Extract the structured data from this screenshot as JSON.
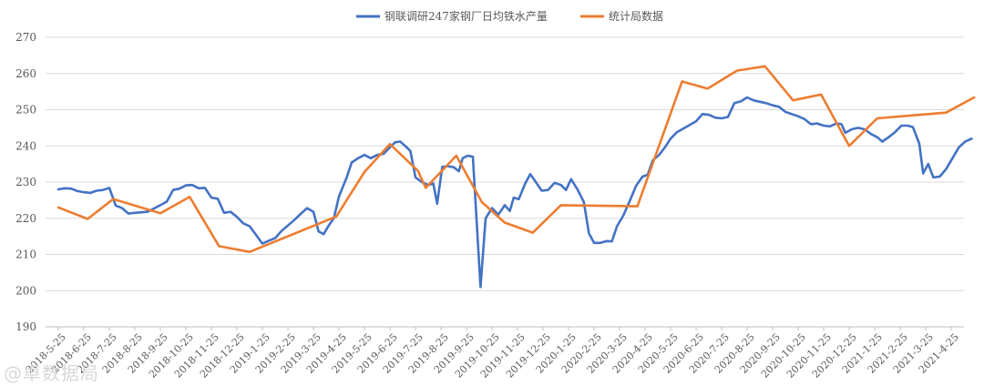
{
  "chart_data": {
    "type": "line",
    "ylim": [
      190,
      270
    ],
    "yticks": [
      190,
      200,
      210,
      220,
      230,
      240,
      250,
      260,
      270
    ],
    "grid": true,
    "legend_position": "top-center",
    "x_categories": [
      "2018-5-25",
      "2018-6-25",
      "2018-7-25",
      "2018-8-25",
      "2018-9-25",
      "2018-10-25",
      "2018-11-25",
      "2018-12-25",
      "2019-1-25",
      "2019-2-25",
      "2019-3-25",
      "2019-4-25",
      "2019-5-25",
      "2019-6-25",
      "2019-7-25",
      "2019-8-25",
      "2019-9-25",
      "2019-10-25",
      "2019-11-25",
      "2019-12-25",
      "2020-1-25",
      "2020-2-25",
      "2020-3-25",
      "2020-4-25",
      "2020-5-25",
      "2020-6-25",
      "2020-7-25",
      "2020-8-25",
      "2020-9-25",
      "2020-10-25",
      "2020-11-25",
      "2020-12-25",
      "2021-1-25",
      "2021-2-25",
      "2021-3-25",
      "2021-4-25"
    ],
    "series": [
      {
        "name": "钢联调研247家钢厂日均铁水产量",
        "color": "#4472C4",
        "points": [
          [
            0,
            228.0
          ],
          [
            0.25,
            228.3
          ],
          [
            0.5,
            228.2
          ],
          [
            0.75,
            227.5
          ],
          [
            1,
            227.2
          ],
          [
            1.25,
            227.0
          ],
          [
            1.5,
            227.6
          ],
          [
            1.75,
            227.8
          ],
          [
            2,
            228.4
          ],
          [
            2.25,
            223.5
          ],
          [
            2.5,
            222.8
          ],
          [
            2.75,
            221.3
          ],
          [
            3,
            221.5
          ],
          [
            3.5,
            221.8
          ],
          [
            4,
            223.6
          ],
          [
            4.25,
            224.6
          ],
          [
            4.5,
            227.8
          ],
          [
            4.75,
            228.2
          ],
          [
            5,
            229.1
          ],
          [
            5.25,
            229.2
          ],
          [
            5.5,
            228.3
          ],
          [
            5.75,
            228.4
          ],
          [
            6,
            225.7
          ],
          [
            6.25,
            225.4
          ],
          [
            6.5,
            221.5
          ],
          [
            6.75,
            221.8
          ],
          [
            7,
            220.4
          ],
          [
            7.25,
            218.6
          ],
          [
            7.5,
            217.8
          ],
          [
            7.75,
            215.4
          ],
          [
            8,
            213.0
          ],
          [
            8.25,
            213.8
          ],
          [
            8.5,
            214.5
          ],
          [
            8.75,
            216.5
          ],
          [
            9,
            218.0
          ],
          [
            9.25,
            219.5
          ],
          [
            9.5,
            221.2
          ],
          [
            9.75,
            222.8
          ],
          [
            10,
            221.8
          ],
          [
            10.2,
            216.4
          ],
          [
            10.4,
            215.6
          ],
          [
            10.6,
            218.0
          ],
          [
            10.8,
            220.0
          ],
          [
            11,
            226.0
          ],
          [
            11.3,
            231.2
          ],
          [
            11.5,
            235.4
          ],
          [
            11.75,
            236.6
          ],
          [
            12,
            237.5
          ],
          [
            12.25,
            236.6
          ],
          [
            12.5,
            237.5
          ],
          [
            12.75,
            237.8
          ],
          [
            13,
            239.6
          ],
          [
            13.2,
            241.0
          ],
          [
            13.4,
            241.2
          ],
          [
            13.6,
            240.0
          ],
          [
            13.8,
            238.6
          ],
          [
            14,
            231.3
          ],
          [
            14.25,
            230.0
          ],
          [
            14.5,
            229.2
          ],
          [
            14.7,
            229.6
          ],
          [
            14.85,
            224.0
          ],
          [
            15.05,
            234.2
          ],
          [
            15.25,
            234.4
          ],
          [
            15.5,
            234.1
          ],
          [
            15.7,
            233.0
          ],
          [
            15.85,
            236.6
          ],
          [
            16.05,
            237.3
          ],
          [
            16.25,
            237.0
          ],
          [
            16.55,
            201.0
          ],
          [
            16.75,
            220.0
          ],
          [
            17,
            222.8
          ],
          [
            17.25,
            221.0
          ],
          [
            17.5,
            223.6
          ],
          [
            17.7,
            222.0
          ],
          [
            17.85,
            225.7
          ],
          [
            18.05,
            225.3
          ],
          [
            18.3,
            229.6
          ],
          [
            18.5,
            232.2
          ],
          [
            18.7,
            230.2
          ],
          [
            18.95,
            227.6
          ],
          [
            19.2,
            227.8
          ],
          [
            19.45,
            229.8
          ],
          [
            19.7,
            229.2
          ],
          [
            19.9,
            227.8
          ],
          [
            20.1,
            230.8
          ],
          [
            20.35,
            228.0
          ],
          [
            20.6,
            224.5
          ],
          [
            20.8,
            215.8
          ],
          [
            21,
            213.2
          ],
          [
            21.25,
            213.2
          ],
          [
            21.5,
            213.7
          ],
          [
            21.7,
            213.6
          ],
          [
            21.9,
            217.8
          ],
          [
            22.15,
            220.8
          ],
          [
            22.4,
            224.8
          ],
          [
            22.65,
            229.0
          ],
          [
            22.9,
            231.5
          ],
          [
            23.1,
            232.0
          ],
          [
            23.3,
            236.0
          ],
          [
            23.55,
            237.5
          ],
          [
            23.8,
            239.8
          ],
          [
            24,
            242.0
          ],
          [
            24.25,
            243.8
          ],
          [
            24.5,
            244.8
          ],
          [
            24.75,
            245.8
          ],
          [
            25,
            246.8
          ],
          [
            25.25,
            248.8
          ],
          [
            25.5,
            248.6
          ],
          [
            25.75,
            247.8
          ],
          [
            26,
            247.6
          ],
          [
            26.25,
            248.0
          ],
          [
            26.5,
            251.8
          ],
          [
            26.75,
            252.3
          ],
          [
            27,
            253.4
          ],
          [
            27.25,
            252.6
          ],
          [
            27.5,
            252.2
          ],
          [
            27.75,
            251.8
          ],
          [
            28,
            251.2
          ],
          [
            28.25,
            250.8
          ],
          [
            28.5,
            249.4
          ],
          [
            28.75,
            248.8
          ],
          [
            29,
            248.2
          ],
          [
            29.25,
            247.4
          ],
          [
            29.5,
            246.0
          ],
          [
            29.75,
            246.2
          ],
          [
            30,
            245.6
          ],
          [
            30.25,
            245.4
          ],
          [
            30.5,
            246.2
          ],
          [
            30.7,
            246.0
          ],
          [
            30.85,
            243.6
          ],
          [
            31.1,
            244.6
          ],
          [
            31.35,
            245.0
          ],
          [
            31.6,
            244.6
          ],
          [
            31.85,
            243.3
          ],
          [
            32.1,
            242.4
          ],
          [
            32.3,
            241.2
          ],
          [
            32.55,
            242.4
          ],
          [
            32.8,
            243.8
          ],
          [
            33.05,
            245.6
          ],
          [
            33.3,
            245.6
          ],
          [
            33.5,
            245.2
          ],
          [
            33.75,
            240.6
          ],
          [
            33.9,
            232.4
          ],
          [
            34.1,
            235.0
          ],
          [
            34.3,
            231.3
          ],
          [
            34.55,
            231.5
          ],
          [
            34.8,
            233.6
          ],
          [
            35.05,
            236.6
          ],
          [
            35.3,
            239.6
          ],
          [
            35.55,
            241.2
          ],
          [
            35.8,
            242.0
          ]
        ]
      },
      {
        "name": "统计局数据",
        "color": "#ED7D31",
        "points": [
          [
            0,
            223.0
          ],
          [
            1.15,
            219.8
          ],
          [
            2.15,
            225.3
          ],
          [
            4,
            221.4
          ],
          [
            5.15,
            225.9
          ],
          [
            6.3,
            212.3
          ],
          [
            7.5,
            210.7
          ],
          [
            10.9,
            220.5
          ],
          [
            12,
            232.8
          ],
          [
            13,
            240.5
          ],
          [
            14.1,
            233.1
          ],
          [
            14.4,
            228.4
          ],
          [
            15.6,
            237.3
          ],
          [
            16.6,
            224.5
          ],
          [
            17.5,
            218.8
          ],
          [
            18.6,
            216.0
          ],
          [
            19.7,
            223.6
          ],
          [
            22.7,
            223.3
          ],
          [
            24.45,
            257.8
          ],
          [
            25.45,
            255.8
          ],
          [
            26.6,
            260.8
          ],
          [
            27.7,
            262.0
          ],
          [
            28.8,
            252.6
          ],
          [
            29.9,
            254.2
          ],
          [
            31,
            240.0
          ],
          [
            32.1,
            247.6
          ],
          [
            34.8,
            249.2
          ],
          [
            35.9,
            253.4
          ]
        ]
      }
    ]
  },
  "watermark": "@卓数据局"
}
